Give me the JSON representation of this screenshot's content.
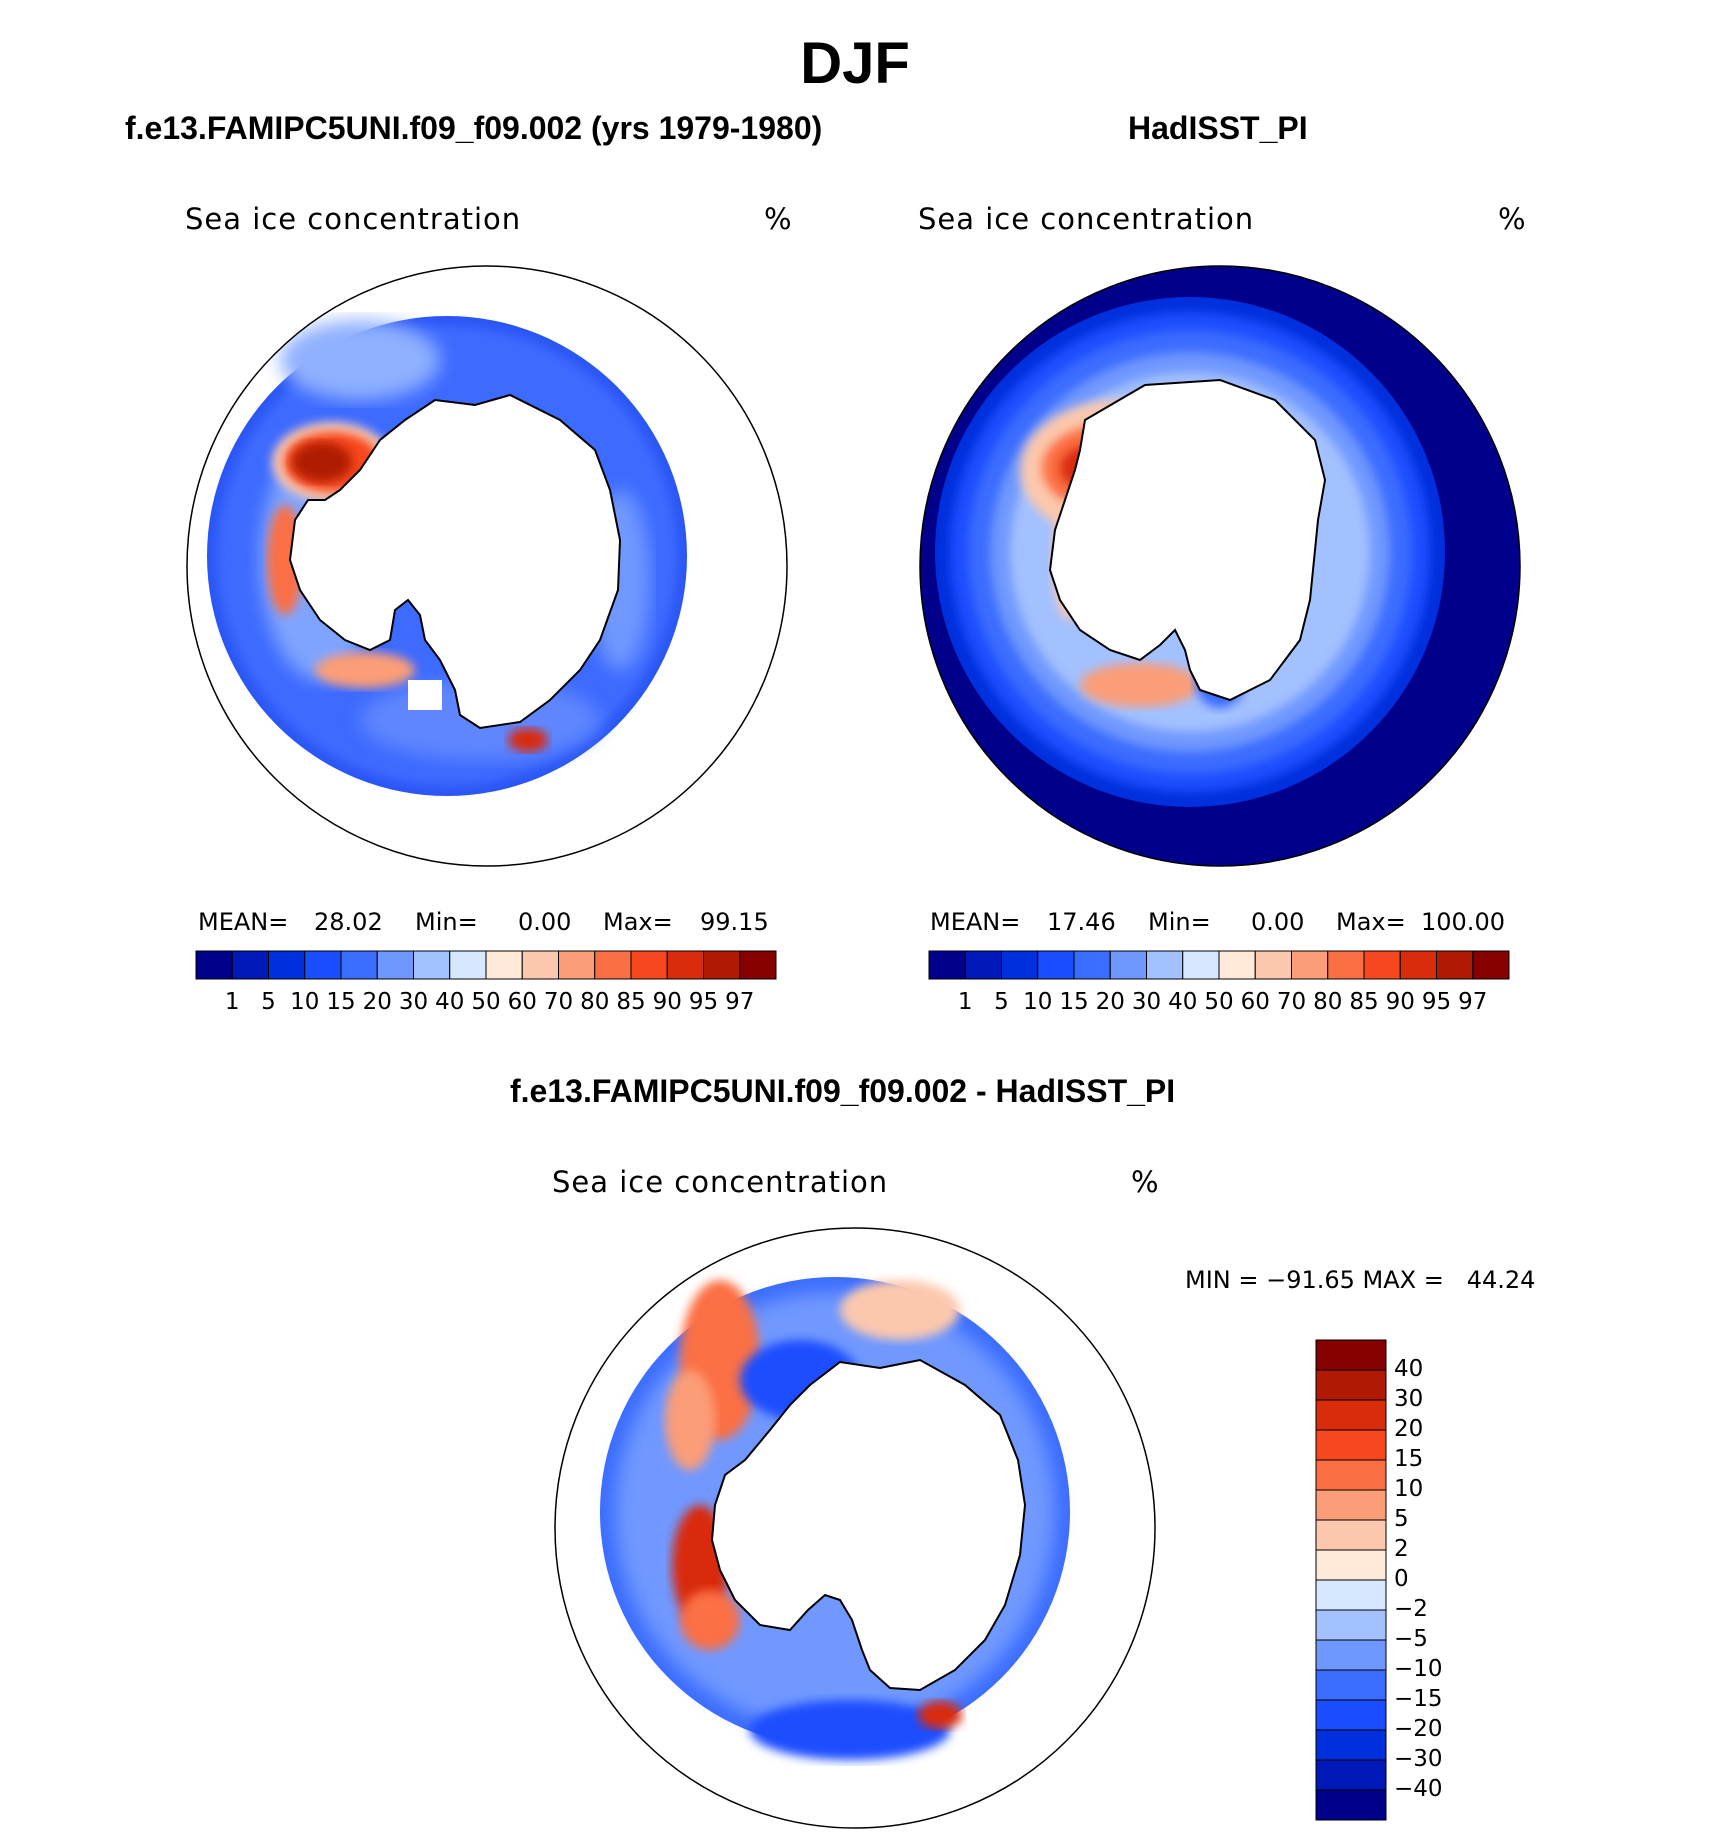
{
  "title": "DJF",
  "colors": {
    "abs_scale": [
      "#00008b",
      "#0018b8",
      "#0030dd",
      "#1a4dff",
      "#3a6cff",
      "#6f98ff",
      "#a3c0ff",
      "#d6e8ff",
      "#ffe9d8",
      "#fcc8ad",
      "#fb9d77",
      "#fb6f45",
      "#f6471e",
      "#d92c0b",
      "#b01a04",
      "#860000"
    ],
    "diff_scale": [
      "#00008b",
      "#0018b8",
      "#0030dd",
      "#1a4dff",
      "#3a6cff",
      "#6f98ff",
      "#a3c0ff",
      "#d6e8ff",
      "#ffe9d8",
      "#fcc8ad",
      "#fb9d77",
      "#fb6f45",
      "#f6471e",
      "#d92c0b",
      "#b01a04",
      "#860000"
    ]
  },
  "panels": {
    "model": {
      "title": "f.e13.FAMIPC5UNI.f09_f09.002 (yrs 1979-1980)",
      "variable": "Sea ice concentration",
      "units": "%",
      "mean_label": "MEAN=",
      "mean": "28.02",
      "min_label": "Min=",
      "min": "0.00",
      "max_label": "Max=",
      "max": "99.15"
    },
    "obs": {
      "title": "HadISST_PI",
      "variable": "Sea ice concentration",
      "units": "%",
      "mean_label": "MEAN=",
      "mean": "17.46",
      "min_label": "Min=",
      "min": "0.00",
      "max_label": "Max=",
      "max": "100.00"
    },
    "diff": {
      "title": "f.e13.FAMIPC5UNI.f09_f09.002 - HadISST_PI",
      "variable": "Sea ice concentration",
      "units": "%",
      "minmax": "MIN = −91.65 MAX =   44.24"
    }
  },
  "abs_ticks": [
    "1",
    "5",
    "10",
    "15",
    "20",
    "30",
    "40",
    "50",
    "60",
    "70",
    "80",
    "85",
    "90",
    "95",
    "97"
  ],
  "diff_ticks": [
    "40",
    "30",
    "20",
    "15",
    "10",
    "5",
    "2",
    "0",
    "−2",
    "−5",
    "−10",
    "−15",
    "−20",
    "−30",
    "−40"
  ]
}
